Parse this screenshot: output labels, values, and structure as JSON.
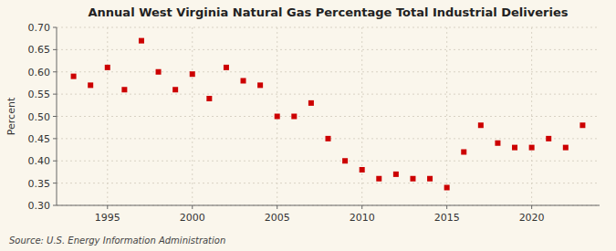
{
  "chart_data": {
    "type": "scatter",
    "title": "Annual West Virginia Natural Gas Percentage Total Industrial Deliveries",
    "y_label": "Percent",
    "annotation": "Source: U.S. Energy Information Administration",
    "x": [
      1993,
      1994,
      1995,
      1996,
      1997,
      1998,
      1999,
      2000,
      2001,
      2002,
      2003,
      2004,
      2005,
      2006,
      2007,
      2008,
      2009,
      2010,
      2011,
      2012,
      2013,
      2014,
      2015,
      2016,
      2017,
      2018,
      2019,
      2020,
      2021,
      2022,
      2023
    ],
    "values": [
      0.59,
      0.57,
      0.61,
      0.56,
      0.67,
      0.6,
      0.56,
      0.595,
      0.54,
      0.61,
      0.58,
      0.57,
      0.5,
      0.5,
      0.53,
      0.45,
      0.4,
      0.38,
      0.36,
      0.37,
      0.36,
      0.36,
      0.34,
      0.42,
      0.48,
      0.44,
      0.43,
      0.43,
      0.45,
      0.43,
      0.48
    ],
    "color": "#cc0000",
    "marker": "square",
    "xlim": [
      1992.0,
      2024.0
    ],
    "xticks": [
      1995,
      2000,
      2005,
      2010,
      2015,
      2020
    ],
    "ylim": [
      0.3,
      0.7
    ],
    "yticks": [
      {
        "value": 0.3,
        "label": "0.30"
      },
      0.35,
      {
        "value": 0.4,
        "label": "0.40"
      },
      0.45,
      {
        "value": 0.5,
        "label": "0.50"
      },
      0.55,
      {
        "value": 0.6,
        "label": "0.60"
      },
      0.65,
      {
        "value": 0.7,
        "label": "0.70"
      }
    ],
    "grid": true
  }
}
